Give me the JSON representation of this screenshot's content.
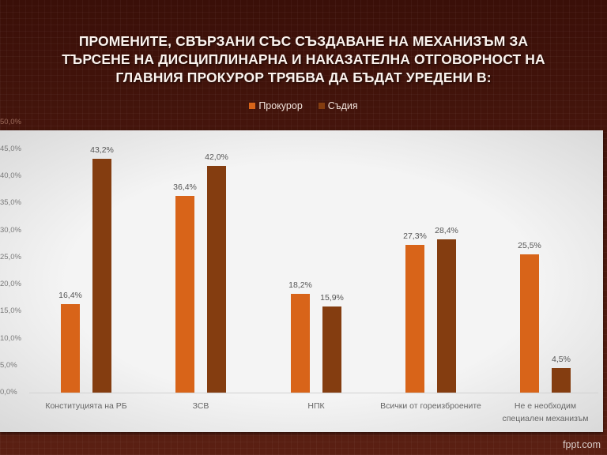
{
  "title": "ПРОМЕНИТЕ, СВЪРЗАНИ СЪС СЪЗДАВАНЕ НА МЕХАНИЗЪМ ЗА ТЪРСЕНЕ НА ДИСЦИПЛИНАРНА И НАКАЗАТЕЛНА ОТГОВОРНОСТ НА ГЛАВНИЯ ПРОКУРОР ТРЯБВА ДА БЪДАТ УРЕДЕНИ В:",
  "title_lines": [
    "ПРОМЕНИТЕ, СВЪРЗАНИ СЪС СЪЗДАВАНЕ НА МЕХАНИЗЪМ ЗА",
    "ТЪРСЕНЕ НА ДИСЦИПЛИНАРНА И НАКАЗАТЕЛНА ОТГОВОРНОСТ НА",
    "ГЛАВНИЯ ПРОКУРОР ТРЯБВА ДА БЪДАТ УРЕДЕНИ В:"
  ],
  "legend": [
    {
      "label": "Прокурор",
      "color": "#d86419"
    },
    {
      "label": "Съдия",
      "color": "#843d10"
    }
  ],
  "y_ticks": [
    "50,0%",
    "45,0%",
    "40,0%",
    "35,0%",
    "30,0%",
    "25,0%",
    "20,0%",
    "15,0%",
    "10,0%",
    "5,0%",
    "0,0%"
  ],
  "categories_display": [
    [
      "Конституцията на РБ"
    ],
    [
      "ЗСВ"
    ],
    [
      "НПК"
    ],
    [
      "Всички от гореизброените"
    ],
    [
      "Не е необходим",
      "специален механизъм"
    ]
  ],
  "bar_labels": {
    "prokuror": [
      "16,4%",
      "36,4%",
      "18,2%",
      "27,3%",
      "25,5%"
    ],
    "sadiya": [
      "43,2%",
      "42,0%",
      "15,9%",
      "28,4%",
      "4,5%"
    ]
  },
  "footer": "fppt.com",
  "chart_data": {
    "type": "bar",
    "title": "ПРОМЕНИТЕ, СВЪРЗАНИ СЪС СЪЗДАВАНЕ НА МЕХАНИЗЪМ ЗА ТЪРСЕНЕ НА ДИСЦИПЛИНАРНА И НАКАЗАТЕЛНА ОТГОВОРНОСТ НА ГЛАВНИЯ ПРОКУРОР ТРЯБВА ДА БЪДАТ УРЕДЕНИ В:",
    "categories": [
      "Конституцията на РБ",
      "ЗСВ",
      "НПК",
      "Всички от гореизброените",
      "Не е необходим специален механизъм"
    ],
    "series": [
      {
        "name": "Прокурор",
        "color": "#d86419",
        "values": [
          16.4,
          36.4,
          18.2,
          27.3,
          25.5
        ]
      },
      {
        "name": "Съдия",
        "color": "#843d10",
        "values": [
          43.2,
          42.0,
          15.9,
          28.4,
          4.5
        ]
      }
    ],
    "xlabel": "",
    "ylabel": "",
    "ylim": [
      0,
      50
    ],
    "y_tick_step": 5,
    "y_format": "percent, comma decimal",
    "legend_position": "top",
    "grid": false,
    "data_labels": true
  }
}
